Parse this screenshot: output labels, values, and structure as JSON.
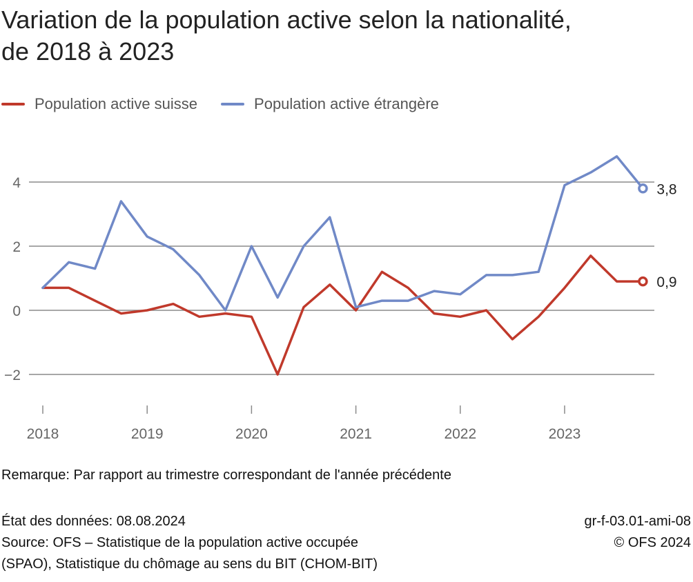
{
  "header": {
    "title_line1": "Variation de la population active selon la nationalité,",
    "title_line2": "de 2018 à 2023"
  },
  "legend": [
    {
      "label": "Population active suisse",
      "color": "#c0392b"
    },
    {
      "label": "Population active étrangère",
      "color": "#7089c7"
    }
  ],
  "chart_data": {
    "type": "line",
    "title": "Variation de la population active selon la nationalité, de 2018 à 2023",
    "xlabel": "",
    "ylabel": "",
    "ylim": [
      -3,
      5
    ],
    "yticks": [
      -2,
      0,
      2,
      4
    ],
    "ytick_labels": [
      "−2",
      "0",
      "2",
      "4"
    ],
    "xticks": [
      2018,
      2019,
      2020,
      2021,
      2022,
      2023
    ],
    "xtick_labels": [
      "2018",
      "2019",
      "2020",
      "2021",
      "2022",
      "2023"
    ],
    "grid": "horizontal",
    "legend_position": "top-left",
    "x": [
      "2018 T1",
      "2018 T2",
      "2018 T3",
      "2018 T4",
      "2019 T1",
      "2019 T2",
      "2019 T3",
      "2019 T4",
      "2020 T1",
      "2020 T2",
      "2020 T3",
      "2020 T4",
      "2021 T1",
      "2021 T2",
      "2021 T3",
      "2021 T4",
      "2022 T1",
      "2022 T2",
      "2022 T3",
      "2022 T4",
      "2023 T1",
      "2023 T2",
      "2023 T3",
      "2023 T4"
    ],
    "series": [
      {
        "name": "Population active suisse",
        "color": "#c0392b",
        "values": [
          0.7,
          0.7,
          0.3,
          -0.1,
          0.0,
          0.2,
          -0.2,
          -0.1,
          -0.2,
          -2.0,
          0.1,
          0.8,
          0.0,
          1.2,
          0.7,
          -0.1,
          -0.2,
          0.0,
          -0.9,
          -0.2,
          0.7,
          1.7,
          0.9,
          0.9
        ],
        "end_label": "0,9"
      },
      {
        "name": "Population active étrangère",
        "color": "#7089c7",
        "values": [
          0.7,
          1.5,
          1.3,
          3.4,
          2.3,
          1.9,
          1.1,
          0.0,
          2.0,
          0.4,
          2.0,
          2.9,
          0.1,
          0.3,
          0.3,
          0.6,
          0.5,
          1.1,
          1.1,
          1.2,
          3.9,
          4.3,
          4.8,
          3.8
        ],
        "end_label": "3,8"
      }
    ]
  },
  "note": "Remarque: Par rapport au trimestre correspondant de l'année précédente",
  "footer": {
    "date": "État des données: 08.08.2024",
    "source_line1": "Source: OFS – Statistique de la population active occupée",
    "source_line2": "(SPAO), Statistique du chômage au sens du BIT (CHOM-BIT)",
    "code": "gr-f-03.01-ami-08",
    "copyright": "© OFS 2024"
  }
}
